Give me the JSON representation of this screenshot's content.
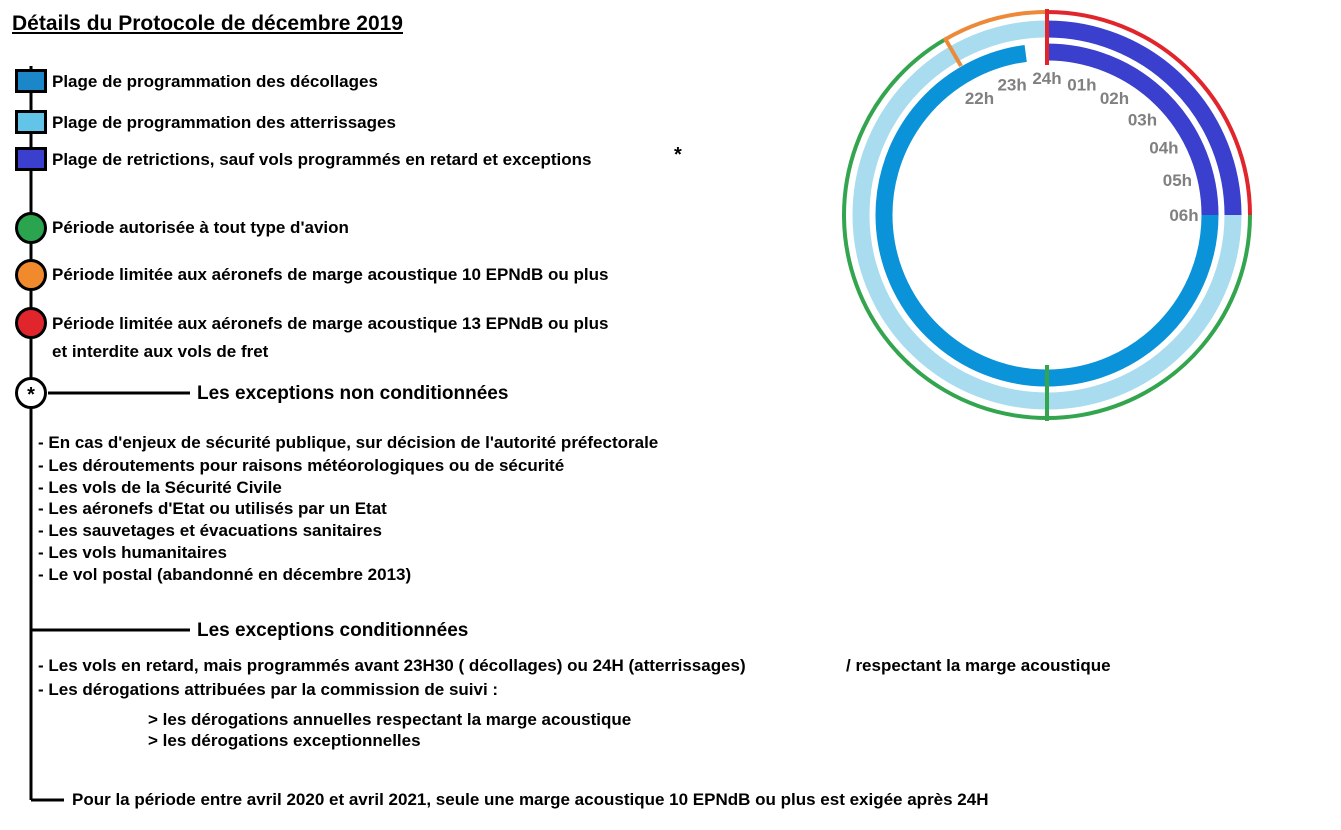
{
  "title": "Détails du Protocole de décembre 2019",
  "colors": {
    "takeoff": "#0a93d8",
    "landing": "#a8dcee",
    "restriction": "#3a3fcd",
    "green": "#33a54f",
    "orange": "#ec8a3a",
    "red": "#e0262c",
    "clock_label": "#808080"
  },
  "legend": {
    "swatches": [
      {
        "label": "Plage de programmation des décollages",
        "color": "#1b86c8"
      },
      {
        "label": "Plage de programmation des atterrissages",
        "color": "#62c4e6"
      },
      {
        "label": "Plage de retrictions,  sauf vols programmés en retard et exceptions",
        "color": "#3a3fcd",
        "mark": "*"
      }
    ],
    "periods": [
      {
        "label": "Période autorisée à tout type d'avion",
        "color": "#2aa44f"
      },
      {
        "label": "Période limitée aux aéronefs de marge acoustique 10 EPNdB ou plus",
        "color": "#f08a2c"
      },
      {
        "label": "Période limitée aux aéronefs de marge acoustique 13 EPNdB ou plus",
        "label2": "et interdite aux vols de fret",
        "color": "#e0262c"
      }
    ]
  },
  "clock": {
    "hours": [
      "24h",
      "01h",
      "02h",
      "03h",
      "04h",
      "05h",
      "06h",
      "22h",
      "23h"
    ]
  },
  "exceptions_unconditioned": {
    "marker": "*",
    "heading": "Les exceptions non conditionnées",
    "items": [
      "- En cas d'enjeux de sécurité publique, sur décision de l'autorité préfectorale",
      "- Les déroutements pour raisons météorologiques ou de sécurité",
      "- Les vols de la Sécurité Civile",
      "- Les aéronefs d'Etat ou utilisés par un Etat",
      "- Les sauvetages et évacuations sanitaires",
      "- Les vols humanitaires",
      "- Le vol postal (abandonné en décembre 2013)"
    ]
  },
  "exceptions_conditioned": {
    "heading": "Les exceptions conditionnées",
    "line1": "- Les vols en retard, mais programmés avant 23H30 ( décollages) ou 24H (atterrissages)",
    "line1_suffix": "/ respectant la marge acoustique",
    "line2": "- Les dérogations attribuées par la commission de suivi :",
    "sub1": "> les dérogations annuelles respectant la marge acoustique",
    "sub2": "> les dérogations exceptionnelles"
  },
  "footer_note": "Pour la période entre avril 2020 et avril 2021, seule une marge acoustique 10 EPNdB ou plus est exigée après 24H"
}
